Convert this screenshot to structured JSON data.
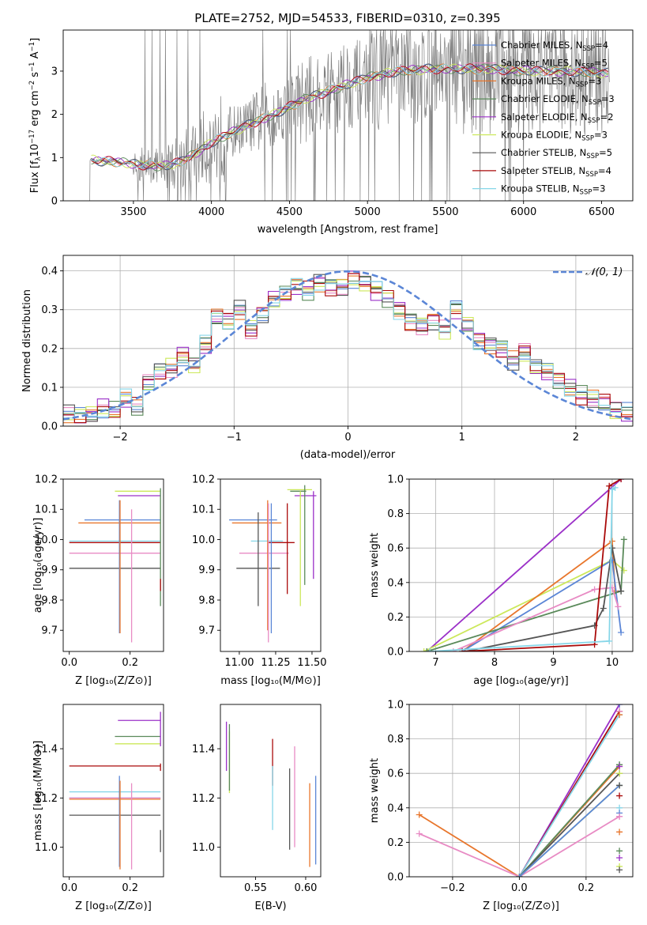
{
  "title": "PLATE=2752, MJD=54533, FIBERID=0310, z=0.395",
  "colors": {
    "Chabrier MILES": "#5b86d6",
    "Salpeter MILES": "#e88bc4",
    "Kroupa MILES": "#e8762c",
    "Chabrier ELODIE": "#5a8a5a",
    "Salpeter ELODIE": "#9b30c8",
    "Kroupa ELODIE": "#cce85a",
    "Chabrier STELIB": "#555555",
    "Salpeter STELIB": "#aa0a0a",
    "Kroupa STELIB": "#86d6e8",
    "data": "#808080",
    "normal": "#5b86d6"
  },
  "chart_data": [
    {
      "id": "spectrum",
      "type": "line",
      "title": "PLATE=2752, MJD=54533, FIBERID=0310, z=0.395",
      "xlabel": "wavelength [Angstrom, rest frame]",
      "ylabel": "Flux [f_λ 10^-17 erg cm^-2 s^-1 A^-1]",
      "xlim": [
        3050,
        6700
      ],
      "ylim": [
        0,
        3.95
      ],
      "xticks": [
        "3500",
        "4000",
        "4500",
        "5000",
        "5500",
        "6000",
        "6500"
      ],
      "yticks": [
        "0",
        "1",
        "2",
        "3"
      ],
      "legend_position": "top-right",
      "legend": [
        {
          "name": "Chabrier MILES",
          "nssp": "4"
        },
        {
          "name": "Salpeter MILES",
          "nssp": "5"
        },
        {
          "name": "Kroupa MILES",
          "nssp": "3"
        },
        {
          "name": "Chabrier ELODIE",
          "nssp": "3"
        },
        {
          "name": "Salpeter ELODIE",
          "nssp": "2"
        },
        {
          "name": "Kroupa ELODIE",
          "nssp": "3"
        },
        {
          "name": "Chabrier STELIB",
          "nssp": "5"
        },
        {
          "name": "Salpeter STELIB",
          "nssp": "4"
        },
        {
          "name": "Kroupa STELIB",
          "nssp": "3"
        }
      ],
      "continuum": {
        "x": [
          3220,
          3300,
          3400,
          3500,
          3600,
          3700,
          3800,
          3900,
          4000,
          4200,
          4400,
          4600,
          4800,
          5000,
          5200,
          5400,
          5600,
          5800,
          6000,
          6200,
          6400,
          6550
        ],
        "y": [
          0.95,
          0.92,
          0.9,
          0.85,
          0.82,
          0.8,
          0.9,
          1.1,
          1.35,
          1.7,
          2.0,
          2.35,
          2.6,
          2.85,
          3.0,
          3.05,
          3.05,
          3.05,
          3.0,
          3.0,
          2.98,
          2.95
        ]
      }
    },
    {
      "id": "residuals",
      "type": "bar",
      "xlabel": "(data-model)/error",
      "ylabel": "Normed distribution",
      "xlim": [
        -2.5,
        2.5
      ],
      "ylim": [
        0,
        0.44
      ],
      "xticks": [
        "−2",
        "−1",
        "0",
        "1",
        "2"
      ],
      "yticks": [
        "0.0",
        "0.1",
        "0.2",
        "0.3",
        "0.4"
      ],
      "grid": true,
      "legend_position": "top-right",
      "normal_label": "𝒩(0, 1)",
      "bin_centers": [
        -2.45,
        -2.35,
        -2.25,
        -2.15,
        -2.05,
        -1.95,
        -1.85,
        -1.75,
        -1.65,
        -1.55,
        -1.45,
        -1.35,
        -1.25,
        -1.15,
        -1.05,
        -0.95,
        -0.85,
        -0.75,
        -0.65,
        -0.55,
        -0.45,
        -0.35,
        -0.25,
        -0.15,
        -0.05,
        0.05,
        0.15,
        0.25,
        0.35,
        0.45,
        0.55,
        0.65,
        0.75,
        0.85,
        0.95,
        1.05,
        1.15,
        1.25,
        1.35,
        1.45,
        1.55,
        1.65,
        1.75,
        1.85,
        1.95,
        2.05,
        2.15,
        2.25,
        2.35,
        2.45
      ],
      "mean_hist": [
        0.03,
        0.025,
        0.03,
        0.045,
        0.04,
        0.07,
        0.05,
        0.11,
        0.14,
        0.15,
        0.18,
        0.16,
        0.21,
        0.28,
        0.27,
        0.3,
        0.25,
        0.29,
        0.33,
        0.34,
        0.36,
        0.35,
        0.37,
        0.36,
        0.36,
        0.38,
        0.37,
        0.35,
        0.33,
        0.3,
        0.27,
        0.26,
        0.27,
        0.25,
        0.3,
        0.26,
        0.22,
        0.21,
        0.2,
        0.17,
        0.19,
        0.15,
        0.14,
        0.12,
        0.1,
        0.08,
        0.07,
        0.06,
        0.04,
        0.035
      ]
    },
    {
      "id": "age-Z",
      "type": "scatter",
      "xlabel": "Z [log₁₀(Z/Z⊙)]",
      "ylabel": "age  [log₁₀(age/yr)]",
      "xlim": [
        -0.02,
        0.31
      ],
      "ylim": [
        9.63,
        10.2
      ],
      "xticks": [
        "0.0",
        "0.2"
      ],
      "yticks": [
        "9.7",
        "9.8",
        "9.9",
        "10.0",
        "10.1",
        "10.2"
      ],
      "hlines": [
        {
          "s": "Kroupa ELODIE",
          "y": 10.16,
          "x0": 0.15,
          "x1": 0.3
        },
        {
          "s": "Salpeter ELODIE",
          "y": 10.145,
          "x0": 0.16,
          "x1": 0.3
        },
        {
          "s": "Chabrier MILES",
          "y": 10.065,
          "x0": 0.05,
          "x1": 0.3
        },
        {
          "s": "Kroupa MILES",
          "y": 10.055,
          "x0": 0.03,
          "x1": 0.3
        },
        {
          "s": "Kroupa STELIB",
          "y": 9.995,
          "x0": 0.0,
          "x1": 0.3
        },
        {
          "s": "Salpeter STELIB",
          "y": 9.99,
          "x0": 0.0,
          "x1": 0.3
        },
        {
          "s": "Salpeter MILES",
          "y": 9.955,
          "x0": 0.0,
          "x1": 0.3
        },
        {
          "s": "Chabrier STELIB",
          "y": 9.905,
          "x0": 0.0,
          "x1": 0.3
        }
      ],
      "vlines": [
        {
          "s": "Chabrier MILES",
          "x": 0.165,
          "y0": 9.69,
          "y1": 10.13
        },
        {
          "s": "Kroupa MILES",
          "x": 0.167,
          "y0": 9.69,
          "y1": 10.13
        },
        {
          "s": "Salpeter MILES",
          "x": 0.205,
          "y0": 9.66,
          "y1": 10.1
        },
        {
          "s": "Chabrier ELODIE",
          "x": 0.3,
          "y0": 9.78,
          "y1": 10.17
        },
        {
          "s": "Salpeter STELIB",
          "x": 0.3,
          "y0": 9.83,
          "y1": 9.87
        }
      ]
    },
    {
      "id": "age-mass",
      "type": "scatter",
      "xlabel": "mass [log₁₀(M/M⊙)]",
      "xlim": [
        10.87,
        11.56
      ],
      "ylim": [
        9.63,
        10.2
      ],
      "xticks": [
        "11.00",
        "11.25",
        "11.50"
      ],
      "yticks": [
        "9.7",
        "9.8",
        "9.9",
        "10.0",
        "10.1",
        "10.2"
      ],
      "hlines": [
        {
          "s": "Kroupa ELODIE",
          "y": 10.165,
          "x0": 11.33,
          "x1": 11.5
        },
        {
          "s": "Chabrier ELODIE",
          "y": 10.16,
          "x0": 11.35,
          "x1": 11.46
        },
        {
          "s": "Salpeter ELODIE",
          "y": 10.145,
          "x0": 11.38,
          "x1": 11.53
        },
        {
          "s": "Chabrier MILES",
          "y": 10.065,
          "x0": 10.93,
          "x1": 11.26
        },
        {
          "s": "Kroupa MILES",
          "y": 10.055,
          "x0": 10.95,
          "x1": 11.29
        },
        {
          "s": "Kroupa STELIB",
          "y": 9.995,
          "x0": 11.08,
          "x1": 11.3
        },
        {
          "s": "Salpeter STELIB",
          "y": 9.99,
          "x0": 11.2,
          "x1": 11.38
        },
        {
          "s": "Salpeter MILES",
          "y": 9.955,
          "x0": 11.0,
          "x1": 11.34
        },
        {
          "s": "Chabrier STELIB",
          "y": 9.905,
          "x0": 10.98,
          "x1": 11.28
        }
      ],
      "vlines": [
        {
          "s": "Chabrier STELIB",
          "x": 11.13,
          "y0": 9.78,
          "y1": 10.09
        },
        {
          "s": "Kroupa MILES",
          "x": 11.195,
          "y0": 9.7,
          "y1": 10.13
        },
        {
          "s": "Salpeter MILES",
          "x": 11.2,
          "y0": 9.66,
          "y1": 10.12
        },
        {
          "s": "Chabrier MILES",
          "x": 11.22,
          "y0": 9.69,
          "y1": 10.12
        },
        {
          "s": "Salpeter STELIB",
          "x": 11.33,
          "y0": 9.82,
          "y1": 10.12
        },
        {
          "s": "Kroupa ELODIE",
          "x": 11.42,
          "y0": 9.78,
          "y1": 10.16
        },
        {
          "s": "Chabrier ELODIE",
          "x": 11.45,
          "y0": 9.85,
          "y1": 10.18
        },
        {
          "s": "Salpeter ELODIE",
          "x": 11.51,
          "y0": 9.87,
          "y1": 10.16
        }
      ]
    },
    {
      "id": "weight-age",
      "type": "line",
      "xlabel": "age  [log₁₀(age/yr)]",
      "ylabel": "mass weight",
      "xlim": [
        6.55,
        10.35
      ],
      "ylim": [
        0,
        1.0
      ],
      "grid": true,
      "xticks": [
        "7",
        "8",
        "9",
        "10"
      ],
      "yticks": [
        "0.0",
        "0.2",
        "0.4",
        "0.6",
        "0.8",
        "1.0"
      ],
      "series": [
        {
          "s": "Salpeter ELODIE",
          "x": [
            6.85,
            10.15
          ],
          "y": [
            0.0,
            1.0
          ]
        },
        {
          "s": "Kroupa ELODIE",
          "x": [
            6.8,
            10.0,
            10.2
          ],
          "y": [
            0.0,
            0.53,
            0.47
          ]
        },
        {
          "s": "Kroupa MILES",
          "x": [
            7.45,
            10.0,
            10.05
          ],
          "y": [
            0.0,
            0.64,
            0.35
          ]
        },
        {
          "s": "Chabrier MILES",
          "x": [
            7.45,
            10.0,
            10.15
          ],
          "y": [
            0.0,
            0.53,
            0.11
          ]
        },
        {
          "s": "Chabrier ELODIE",
          "x": [
            6.85,
            10.15,
            10.2
          ],
          "y": [
            0.0,
            0.35,
            0.65
          ]
        },
        {
          "s": "Salpeter MILES",
          "x": [
            7.3,
            9.7,
            10.0,
            10.1
          ],
          "y": [
            0.0,
            0.36,
            0.37,
            0.26
          ]
        },
        {
          "s": "Chabrier STELIB",
          "x": [
            7.5,
            9.7,
            9.85,
            10.0,
            10.15
          ],
          "y": [
            0.0,
            0.15,
            0.25,
            0.6,
            0.35
          ]
        },
        {
          "s": "Salpeter STELIB",
          "x": [
            7.45,
            9.7,
            9.95,
            10.15
          ],
          "y": [
            0.0,
            0.04,
            0.96,
            1.0
          ]
        },
        {
          "s": "Kroupa STELIB",
          "x": [
            6.9,
            9.95,
            10.0,
            10.05
          ],
          "y": [
            0.0,
            0.06,
            0.94,
            0.95
          ]
        }
      ]
    },
    {
      "id": "mass-Z",
      "type": "scatter",
      "xlabel": "Z [log₁₀(Z/Z⊙)]",
      "ylabel": "mass [log₁₀(M/M⊙)]",
      "xlim": [
        -0.02,
        0.31
      ],
      "ylim": [
        10.88,
        11.58
      ],
      "xticks": [
        "0.0",
        "0.2"
      ],
      "yticks": [
        "11.0",
        "11.2",
        "11.4"
      ],
      "hlines": [
        {
          "s": "Salpeter ELODIE",
          "y": 11.515,
          "x0": 0.16,
          "x1": 0.3
        },
        {
          "s": "Chabrier ELODIE",
          "y": 11.45,
          "x0": 0.15,
          "x1": 0.3
        },
        {
          "s": "Kroupa ELODIE",
          "y": 11.42,
          "x0": 0.15,
          "x1": 0.3
        },
        {
          "s": "Salpeter STELIB",
          "y": 11.33,
          "x0": 0.0,
          "x1": 0.3
        },
        {
          "s": "Kroupa STELIB",
          "y": 11.225,
          "x0": 0.0,
          "x1": 0.3
        },
        {
          "s": "Chabrier MILES",
          "y": 11.2,
          "x0": 0.0,
          "x1": 0.3
        },
        {
          "s": "Kroupa MILES",
          "y": 11.195,
          "x0": 0.0,
          "x1": 0.3
        },
        {
          "s": "Salpeter MILES",
          "y": 11.2,
          "x0": 0.0,
          "x1": 0.3
        },
        {
          "s": "Chabrier STELIB",
          "y": 11.13,
          "x0": 0.0,
          "x1": 0.3
        }
      ],
      "vlines": [
        {
          "s": "Chabrier MILES",
          "x": 0.165,
          "y0": 10.92,
          "y1": 11.29
        },
        {
          "s": "Kroupa MILES",
          "x": 0.167,
          "y0": 10.91,
          "y1": 11.27
        },
        {
          "s": "Salpeter MILES",
          "x": 0.205,
          "y0": 10.91,
          "y1": 11.26
        },
        {
          "s": "Salpeter ELODIE",
          "x": 0.3,
          "y0": 11.41,
          "y1": 11.55
        },
        {
          "s": "Salpeter STELIB",
          "x": 0.3,
          "y0": 11.31,
          "y1": 11.34
        },
        {
          "s": "Chabrier STELIB",
          "x": 0.3,
          "y0": 10.98,
          "y1": 11.07
        }
      ]
    },
    {
      "id": "mass-ebv",
      "type": "scatter",
      "xlabel": "E(B-V)",
      "xlim": [
        0.515,
        0.615
      ],
      "ylim": [
        10.88,
        11.58
      ],
      "xticks": [
        "0.55",
        "0.60"
      ],
      "yticks": [
        "11.0",
        "11.2",
        "11.4"
      ],
      "vlines": [
        {
          "s": "Salpeter ELODIE",
          "x": 0.521,
          "y0": 11.31,
          "y1": 11.51
        },
        {
          "s": "Kroupa ELODIE",
          "x": 0.524,
          "y0": 11.22,
          "y1": 11.47
        },
        {
          "s": "Chabrier ELODIE",
          "x": 0.524,
          "y0": 11.23,
          "y1": 11.5
        },
        {
          "s": "Salpeter STELIB",
          "x": 0.567,
          "y0": 11.25,
          "y1": 11.44
        },
        {
          "s": "Kroupa STELIB",
          "x": 0.567,
          "y0": 11.07,
          "y1": 11.33
        },
        {
          "s": "Chabrier STELIB",
          "x": 0.584,
          "y0": 10.99,
          "y1": 11.32
        },
        {
          "s": "Salpeter MILES",
          "x": 0.589,
          "y0": 11.0,
          "y1": 11.41
        },
        {
          "s": "Kroupa MILES",
          "x": 0.604,
          "y0": 10.92,
          "y1": 11.26
        },
        {
          "s": "Chabrier MILES",
          "x": 0.61,
          "y0": 10.93,
          "y1": 11.29
        }
      ]
    },
    {
      "id": "weight-Z",
      "type": "line",
      "xlabel": "Z [log₁₀(Z/Z⊙)]",
      "ylabel": "mass weight",
      "xlim": [
        -0.33,
        0.34
      ],
      "ylim": [
        0,
        1.0
      ],
      "grid": true,
      "xticks": [
        "−0.2",
        "0.0",
        "0.2"
      ],
      "yticks": [
        "0.0",
        "0.2",
        "0.4",
        "0.6",
        "0.8",
        "1.0"
      ],
      "series": [
        {
          "s": "Kroupa MILES",
          "x": [
            -0.3,
            0.0,
            0.3
          ],
          "y": [
            0.36,
            0.0,
            0.64
          ]
        },
        {
          "s": "Salpeter MILES",
          "x": [
            -0.3,
            0.0,
            0.3
          ],
          "y": [
            0.25,
            0.0,
            0.35
          ]
        },
        {
          "s": "Salpeter ELODIE",
          "x": [
            0.0,
            0.3
          ],
          "y": [
            0.0,
            1.0
          ]
        },
        {
          "s": "Salpeter STELIB",
          "x": [
            0.0,
            0.3
          ],
          "y": [
            0.0,
            0.96
          ]
        },
        {
          "s": "Kroupa STELIB",
          "x": [
            0.0,
            0.3
          ],
          "y": [
            0.0,
            0.94
          ]
        },
        {
          "s": "Chabrier ELODIE",
          "x": [
            0.0,
            0.3
          ],
          "y": [
            0.0,
            0.65
          ]
        },
        {
          "s": "Chabrier STELIB",
          "x": [
            0.0,
            0.3
          ],
          "y": [
            0.0,
            0.6
          ]
        },
        {
          "s": "Kroupa ELODIE",
          "x": [
            0.0,
            0.3
          ],
          "y": [
            0.0,
            0.53
          ]
        },
        {
          "s": "Chabrier MILES",
          "x": [
            0.0,
            0.3
          ],
          "y": [
            0.0,
            0.53
          ]
        }
      ],
      "marker_ys": [
        1.0,
        0.96,
        0.94,
        0.65,
        0.64,
        0.6,
        0.53,
        0.47,
        0.4,
        0.37,
        0.35,
        0.26,
        0.15,
        0.11,
        0.06,
        0.04
      ]
    }
  ]
}
